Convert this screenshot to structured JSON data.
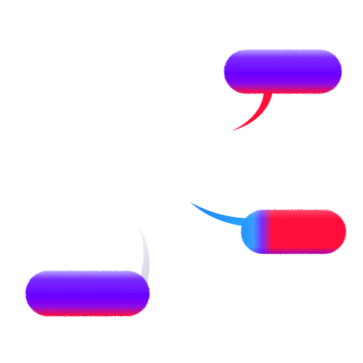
{
  "colors": {
    "background": "#ffffff",
    "violet": "#6a00ff",
    "red": "#ff0f3a",
    "blue": "#1e96ff",
    "pale": "#e6e6f0"
  },
  "bubbles": [
    {
      "name": "speech-bubble-top-right",
      "body_fill": "violet-to-red",
      "tail_color": "red"
    },
    {
      "name": "speech-bubble-middle-right",
      "body_fill": "blue-violet-red",
      "tail_color": "blue"
    },
    {
      "name": "speech-bubble-bottom-left",
      "body_fill": "violet-to-red",
      "tail_color": "pale"
    }
  ]
}
